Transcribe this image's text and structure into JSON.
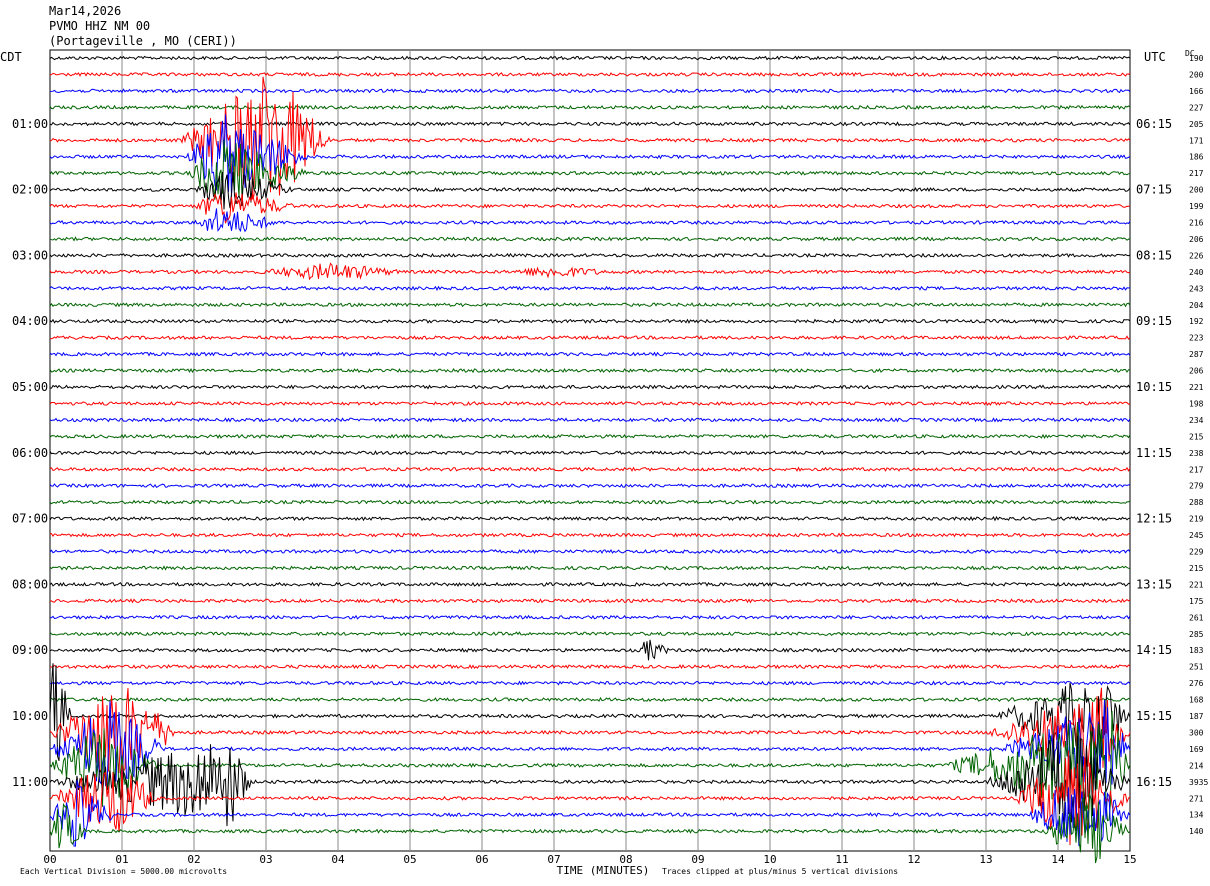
{
  "header": {
    "date": "Mar14,2026",
    "station": "PVMO HHZ NM 00",
    "location": "(Portageville , MO (CERI))"
  },
  "left_timezone": "CDT",
  "right_timezone": "UTC",
  "dc_label": "DC",
  "chart_data": {
    "type": "line",
    "title": "",
    "xlabel": "TIME (MINUTES)",
    "ylabel": "",
    "x_range": [
      0,
      15
    ],
    "x_ticks": [
      "00",
      "01",
      "02",
      "03",
      "04",
      "05",
      "06",
      "07",
      "08",
      "09",
      "10",
      "11",
      "12",
      "13",
      "14",
      "15"
    ],
    "vertical_grid": true,
    "trace_count": 48,
    "trace_colors": [
      "#000000",
      "#ff0000",
      "#0000ff",
      "#006400"
    ],
    "left_time_labels": [
      "01:00",
      "02:00",
      "03:00",
      "04:00",
      "05:00",
      "06:00",
      "07:00",
      "08:00",
      "09:00",
      "10:00",
      "11:00"
    ],
    "right_time_labels": [
      "06:15",
      "07:15",
      "08:15",
      "09:15",
      "10:15",
      "11:15",
      "12:15",
      "13:15",
      "14:15",
      "15:15",
      "16:15"
    ],
    "dc_offsets": [
      "190",
      "200",
      "166",
      "227",
      "205",
      "171",
      "186",
      "217",
      "200",
      "199",
      "216",
      "206",
      "226",
      "240",
      "243",
      "204",
      "192",
      "223",
      "287",
      "206",
      "221",
      "198",
      "234",
      "215",
      "238",
      "217",
      "279",
      "288",
      "219",
      "245",
      "229",
      "215",
      "221",
      "175",
      "261",
      "285",
      "183",
      "251",
      "276",
      "168",
      "187",
      "300",
      "169",
      "214",
      "3935",
      "271",
      "134",
      "140"
    ],
    "scale_note": "Each Vertical Division = 5000.00 microvolts",
    "clip_note": "Traces clipped at plus/minus 5 vertical divisions"
  }
}
